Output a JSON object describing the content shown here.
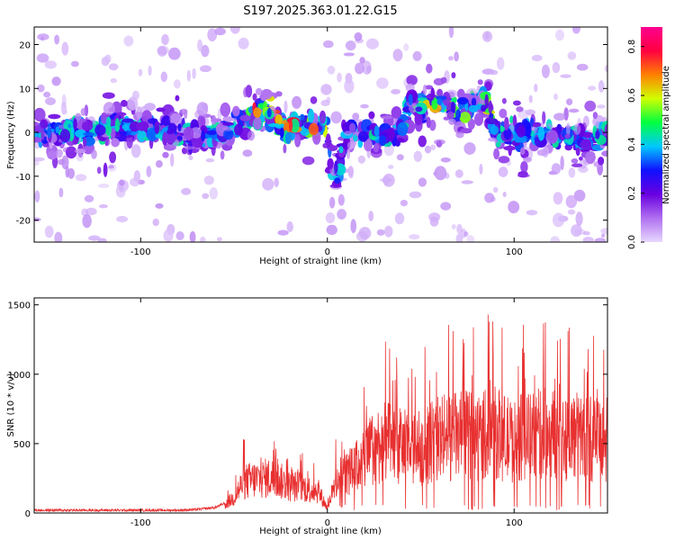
{
  "title": "S197.2025.363.01.22.G15",
  "chart_data": [
    {
      "type": "heatmap",
      "title": "S197.2025.363.01.22.G15",
      "xlabel": "Height of straight line (km)",
      "ylabel": "Frequency (Hz)",
      "xlim": [
        -157,
        150
      ],
      "ylim": [
        -25,
        24
      ],
      "xticks": [
        -100,
        0,
        100
      ],
      "xtick_labels": [
        "-100",
        "0",
        "100"
      ],
      "yticks": [
        -20,
        -10,
        0,
        10,
        20
      ],
      "ytick_labels": [
        "-20",
        "-10",
        "0",
        "10",
        "20"
      ],
      "colorbar": {
        "label": "Normalized spectral amplitude",
        "range": [
          0,
          0.88
        ],
        "ticks": [
          0,
          0.2,
          0.4,
          0.6,
          0.8
        ],
        "tick_labels": [
          "0.0",
          "0.2",
          "0.4",
          "0.6",
          "0.8"
        ],
        "colors": [
          "#e8d8ff",
          "#b070f0",
          "#6a00e0",
          "#1010ff",
          "#00c8ff",
          "#00ff40",
          "#d0ff00",
          "#ff8000",
          "#ff0040",
          "#ff0090"
        ]
      },
      "ridge_frequency_track": {
        "x": [
          -157,
          -140,
          -120,
          -100,
          -80,
          -70,
          -60,
          -50,
          -40,
          -35,
          -30,
          -25,
          -20,
          -15,
          -10,
          -5,
          0,
          2,
          4,
          6,
          10,
          20,
          30,
          40,
          45,
          50,
          55,
          60,
          65,
          70,
          75,
          80,
          85,
          90,
          95,
          100,
          110,
          120,
          130,
          140,
          150
        ],
        "y": [
          0,
          0,
          1,
          1,
          0,
          -1,
          0,
          1,
          4,
          5,
          4,
          2,
          1,
          2,
          2,
          1,
          1,
          -8,
          -10,
          -9,
          0,
          0,
          -1,
          0,
          7,
          5,
          8,
          6,
          6,
          5,
          6,
          7,
          8,
          0,
          0,
          -1,
          0,
          -1,
          -1,
          -2,
          0
        ]
      }
    },
    {
      "type": "line",
      "xlabel": "Height of straight line (km)",
      "ylabel": "SNR (10 * v/v)",
      "xlim": [
        -157,
        150
      ],
      "ylim": [
        0,
        1550
      ],
      "xticks": [
        -100,
        0,
        100
      ],
      "xtick_labels": [
        "-100",
        "0",
        "100"
      ],
      "yticks": [
        0,
        500,
        1000,
        1500
      ],
      "ytick_labels": [
        "0",
        "500",
        "1000",
        "1500"
      ],
      "color": "#e83030",
      "series": [
        {
          "name": "SNR",
          "x": [
            -157,
            -150,
            -140,
            -130,
            -120,
            -110,
            -100,
            -90,
            -80,
            -70,
            -60,
            -55,
            -50,
            -45,
            -40,
            -35,
            -30,
            -25,
            -20,
            -15,
            -10,
            -5,
            0,
            5,
            10,
            15,
            20,
            25,
            30,
            35,
            40,
            45,
            50,
            55,
            60,
            65,
            70,
            75,
            80,
            85,
            90,
            95,
            100,
            105,
            110,
            115,
            120,
            125,
            130,
            135,
            140,
            145,
            150
          ],
          "y": [
            20,
            20,
            20,
            20,
            20,
            20,
            20,
            20,
            20,
            25,
            40,
            70,
            130,
            260,
            280,
            290,
            300,
            270,
            220,
            230,
            200,
            190,
            40,
            280,
            330,
            380,
            470,
            560,
            600,
            580,
            560,
            520,
            550,
            600,
            630,
            650,
            650,
            660,
            640,
            690,
            680,
            640,
            600,
            650,
            650,
            680,
            680,
            650,
            660,
            650,
            640,
            620,
            600
          ]
        }
      ]
    }
  ]
}
